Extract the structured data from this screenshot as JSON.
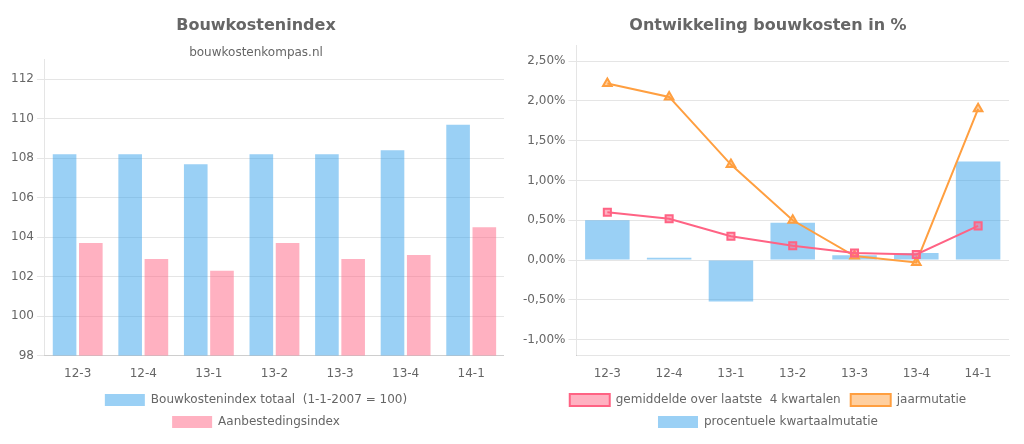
{
  "chart_data": [
    {
      "type": "bar",
      "title": "Bouwkostenindex",
      "subtitle": "bouwkostenkompas.nl",
      "categories": [
        "12-3",
        "12-4",
        "13-1",
        "13-2",
        "13-3",
        "13-4",
        "14-1"
      ],
      "series": [
        {
          "name": "Bouwkostenindex totaal  (1-1-2007 = 100)",
          "values": [
            108.2,
            108.2,
            107.7,
            108.2,
            108.2,
            108.4,
            109.7
          ]
        },
        {
          "name": "Aanbestedingsindex",
          "values": [
            103.7,
            102.9,
            102.3,
            103.7,
            102.9,
            103.1,
            104.5
          ]
        }
      ],
      "ylim": [
        98,
        113
      ],
      "yticks": [
        98,
        100,
        102,
        104,
        106,
        108,
        110,
        112
      ],
      "grid": true,
      "legend": "bottom"
    },
    {
      "type": "bar",
      "title": "Ontwikkeling bouwkosten in %",
      "categories": [
        "12-3",
        "12-4",
        "13-1",
        "13-2",
        "13-3",
        "13-4",
        "14-1"
      ],
      "series": [
        {
          "name": "procentuele kwartaalmutatie",
          "type": "bar",
          "values": [
            0.005,
            0.0003,
            -0.0052,
            0.0047,
            0.0006,
            0.0009,
            0.0124
          ]
        },
        {
          "name": "gemiddelde over laatste  4 kwartalen",
          "type": "line",
          "marker": "square",
          "values": [
            0.006,
            0.0052,
            0.003,
            0.0018,
            0.0009,
            0.0007,
            0.0043
          ]
        },
        {
          "name": "jaarmutatie",
          "type": "line",
          "marker": "triangle",
          "values": [
            0.0222,
            0.0205,
            0.012,
            0.005,
            0.0005,
            -0.0003,
            0.019
          ]
        }
      ],
      "ylim": [
        -0.012,
        0.027
      ],
      "yticks": [
        {
          "value": -0.01,
          "label": "-1,00%"
        },
        {
          "value": -0.005,
          "label": "-0,50%"
        },
        {
          "value": 0,
          "label": "0,00%"
        },
        {
          "value": 0.005,
          "label": "0,50%"
        },
        {
          "value": 0.01,
          "label": "1,00%"
        },
        {
          "value": 0.015,
          "label": "1,50%"
        },
        {
          "value": 0.02,
          "label": "2,00%"
        },
        {
          "value": 0.025,
          "label": "2,50%"
        }
      ],
      "grid": true,
      "legend": "bottom"
    }
  ]
}
